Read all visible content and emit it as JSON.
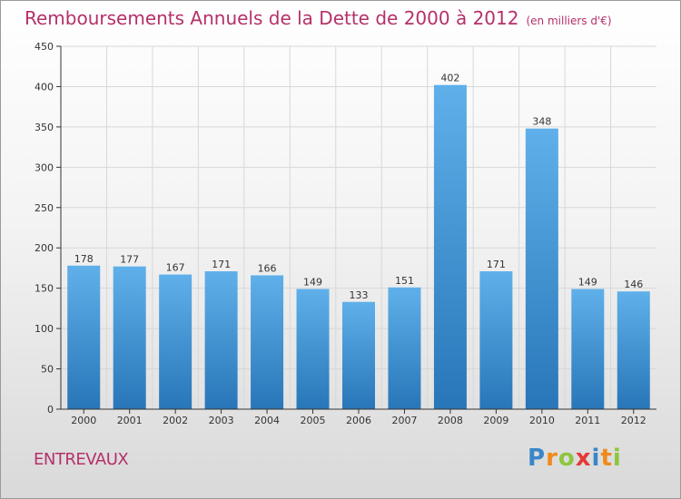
{
  "title": "Remboursements Annuels de la Dette de 2000 à 2012",
  "unit": "(en milliers d'€)",
  "town": "ENTREVAUX",
  "logo": "Proxiti",
  "colors": {
    "title": "#b5306a",
    "bar_top": "#5fb0ea",
    "bar_bottom": "#2876b8",
    "grid": "#d8d8d8",
    "axis": "#333333"
  },
  "chart_data": {
    "type": "bar",
    "title": "Remboursements Annuels de la Dette de 2000 à 2012",
    "xlabel": "",
    "ylabel": "",
    "categories": [
      "2000",
      "2001",
      "2002",
      "2003",
      "2004",
      "2005",
      "2006",
      "2007",
      "2008",
      "2009",
      "2010",
      "2011",
      "2012"
    ],
    "values": [
      178,
      177,
      167,
      171,
      166,
      149,
      133,
      151,
      402,
      171,
      348,
      149,
      146
    ],
    "ylim": [
      0,
      450
    ],
    "yticks": [
      0,
      50,
      100,
      150,
      200,
      250,
      300,
      350,
      400,
      450
    ],
    "grid": true,
    "legend": "none"
  }
}
